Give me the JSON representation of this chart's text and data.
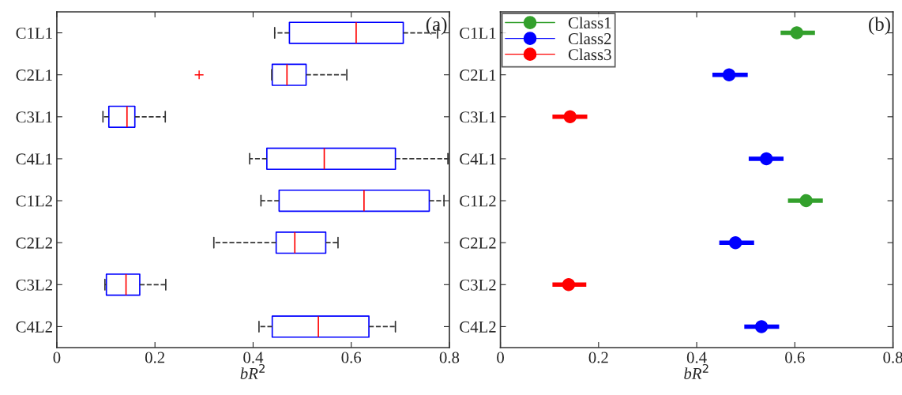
{
  "chart_data": [
    {
      "type": "box",
      "orientation": "horizontal",
      "categories": [
        "C1L1",
        "C2L1",
        "C3L1",
        "C4L1",
        "C1L2",
        "C2L2",
        "C3L2",
        "C4L2"
      ],
      "xlabel": "bR$^{2}$",
      "annotations": [
        "(a)"
      ],
      "xlim": [
        0,
        0.8
      ],
      "xticks": [
        0,
        0.2,
        0.4,
        0.6,
        0.8
      ],
      "grid": false,
      "series": [
        {
          "color": "#0000ff",
          "boxes": [
            {
              "low": 0.444,
              "q1": 0.474,
              "median": 0.61,
              "q3": 0.706,
              "high": 0.776
            },
            {
              "low": 0.438,
              "q1": 0.439,
              "median": 0.469,
              "q3": 0.508,
              "high": 0.591,
              "outliers": [
                0.29
              ]
            },
            {
              "low": 0.094,
              "q1": 0.106,
              "median": 0.143,
              "q3": 0.159,
              "high": 0.221
            },
            {
              "low": 0.393,
              "q1": 0.428,
              "median": 0.545,
              "q3": 0.69,
              "high": 0.797
            },
            {
              "low": 0.416,
              "q1": 0.453,
              "median": 0.626,
              "q3": 0.759,
              "high": 0.789
            },
            {
              "low": 0.32,
              "q1": 0.447,
              "median": 0.485,
              "q3": 0.548,
              "high": 0.573
            },
            {
              "low": 0.098,
              "q1": 0.101,
              "median": 0.141,
              "q3": 0.169,
              "high": 0.222
            },
            {
              "low": 0.412,
              "q1": 0.439,
              "median": 0.533,
              "q3": 0.636,
              "high": 0.69
            }
          ]
        }
      ]
    },
    {
      "type": "scatter",
      "orientation": "horizontal",
      "categories": [
        "C1L1",
        "C2L1",
        "C3L1",
        "C4L1",
        "C1L2",
        "C2L2",
        "C3L2",
        "C4L2"
      ],
      "xlabel": "bR$^{2}$",
      "annotations": [
        "(b)"
      ],
      "xlim": [
        0,
        0.8
      ],
      "xticks": [
        0,
        0.2,
        0.4,
        0.6,
        0.8
      ],
      "grid": false,
      "legend": "top left",
      "marker": "circle",
      "series": [
        {
          "name": "Class1",
          "color": "#33a02c",
          "values": [
            0.604,
            null,
            null,
            null,
            0.623,
            null,
            null,
            null
          ],
          "errors": [
            [
              0.571,
              0.641
            ],
            null,
            null,
            null,
            [
              0.586,
              0.657
            ],
            null,
            null,
            null
          ]
        },
        {
          "name": "Class2",
          "color": "#0000ff",
          "values": [
            null,
            0.466,
            null,
            0.542,
            null,
            0.479,
            null,
            0.532
          ],
          "errors": [
            null,
            [
              0.432,
              0.504
            ],
            null,
            [
              0.506,
              0.577
            ],
            null,
            [
              0.446,
              0.517
            ],
            null,
            [
              0.497,
              0.568
            ]
          ]
        },
        {
          "name": "Class3",
          "color": "#ff0000",
          "values": [
            null,
            null,
            0.142,
            null,
            null,
            null,
            0.139,
            null
          ],
          "errors": [
            null,
            null,
            [
              0.106,
              0.177
            ],
            null,
            null,
            null,
            [
              0.106,
              0.175
            ],
            null
          ]
        }
      ]
    }
  ]
}
